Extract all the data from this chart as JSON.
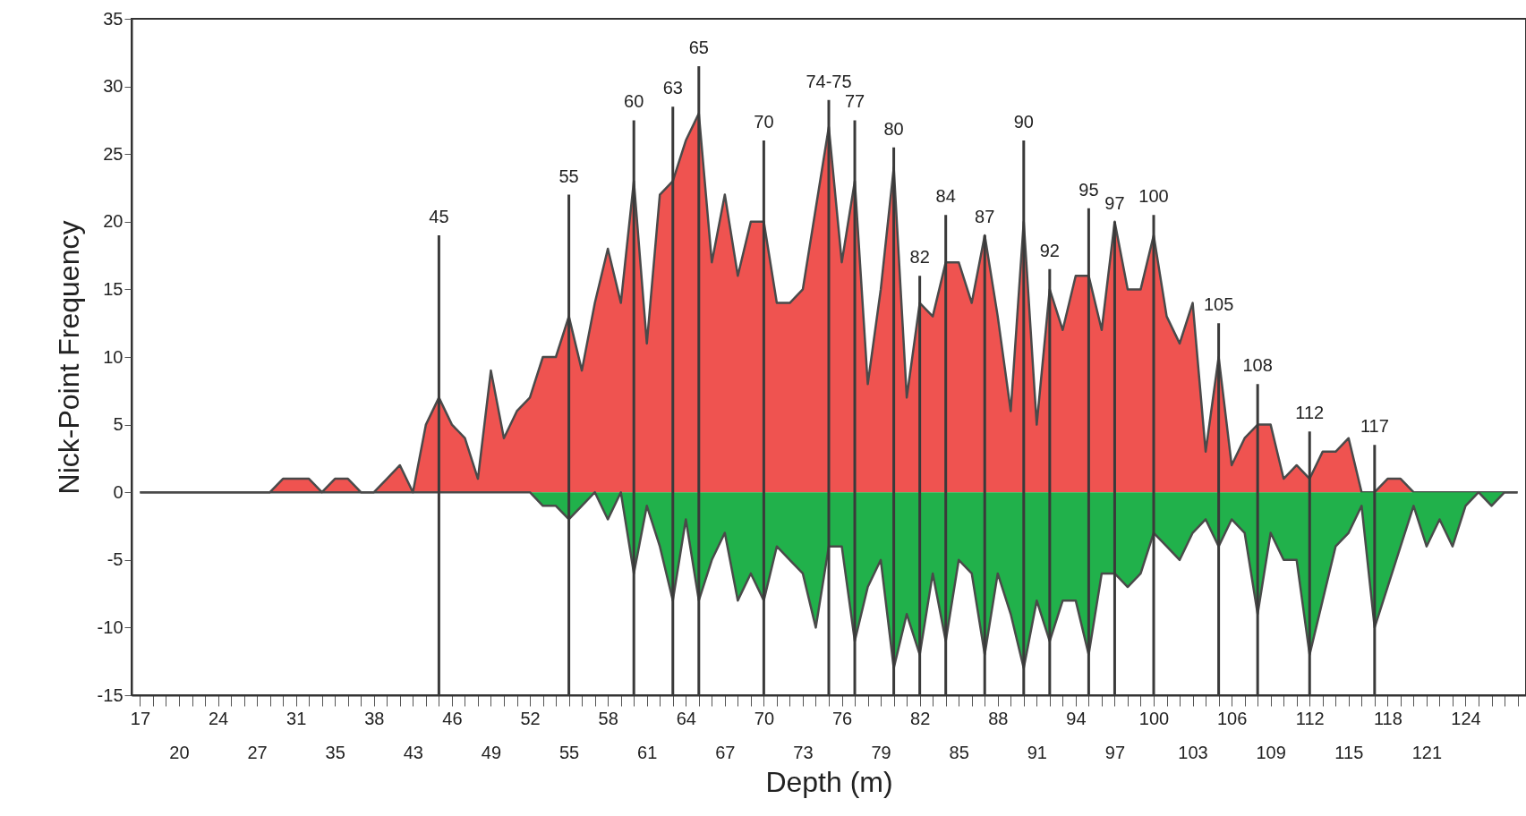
{
  "chart_data": {
    "type": "area",
    "xlabel": "Depth (m)",
    "ylabel": "Nick-Point Frequency",
    "ylim": [
      -15,
      35
    ],
    "yticks": [
      -15,
      -10,
      -5,
      0,
      5,
      10,
      15,
      20,
      25,
      30,
      35
    ],
    "annotations": [
      {
        "text": "45",
        "y": 19
      },
      {
        "text": "55",
        "y": 22
      },
      {
        "text": "60",
        "y": 27.5
      },
      {
        "text": "63",
        "y": 28.5
      },
      {
        "text": "65",
        "y": 31.5
      },
      {
        "text": "70",
        "y": 26
      },
      {
        "text": "74-75",
        "y": 29
      },
      {
        "text": "77",
        "y": 27.5
      },
      {
        "text": "80",
        "y": 25.5
      },
      {
        "text": "82",
        "y": 16
      },
      {
        "text": "84",
        "y": 20.5
      },
      {
        "text": "87",
        "y": 19
      },
      {
        "text": "90",
        "y": 26
      },
      {
        "text": "92",
        "y": 16.5
      },
      {
        "text": "95",
        "y": 21
      },
      {
        "text": "97",
        "y": 20
      },
      {
        "text": "100",
        "y": 20.5
      },
      {
        "text": "105",
        "y": 12.5
      },
      {
        "text": "108",
        "y": 8
      },
      {
        "text": "112",
        "y": 4.5
      },
      {
        "text": "117",
        "y": 3.5
      }
    ],
    "categories": [
      "17",
      null,
      null,
      "20",
      null,
      null,
      "24",
      null,
      null,
      "27",
      null,
      null,
      "31",
      null,
      null,
      "35",
      null,
      null,
      "38",
      null,
      null,
      "43",
      null,
      null,
      "46",
      null,
      null,
      "49",
      null,
      null,
      "52",
      null,
      null,
      "55",
      null,
      null,
      "58",
      null,
      null,
      "61",
      null,
      null,
      "64",
      null,
      null,
      "67",
      null,
      null,
      "70",
      null,
      null,
      "73",
      null,
      null,
      "76",
      null,
      null,
      "79",
      null,
      null,
      "82",
      null,
      null,
      "85",
      null,
      null,
      "88",
      null,
      null,
      "91",
      null,
      null,
      "94",
      null,
      null,
      "97",
      null,
      null,
      "100",
      null,
      null,
      "103",
      null,
      null,
      "106",
      null,
      null,
      "109",
      null,
      null,
      "112",
      null,
      null,
      "115",
      null,
      null,
      "118",
      null,
      null,
      "121",
      null,
      null,
      "124",
      null,
      null,
      null,
      null
    ],
    "series": [
      {
        "color": "#ef5350",
        "values": [
          0,
          0,
          0,
          0,
          0,
          0,
          0,
          0,
          0,
          0,
          0,
          1,
          1,
          1,
          0,
          1,
          1,
          0,
          0,
          1,
          2,
          0,
          5,
          7,
          5,
          4,
          1,
          9,
          4,
          6,
          7,
          10,
          10,
          13,
          9,
          14,
          18,
          14,
          23,
          11,
          22,
          23,
          26,
          28,
          17,
          22,
          16,
          20,
          20,
          14,
          14,
          15,
          21,
          27,
          17,
          23,
          8,
          15,
          24,
          7,
          14,
          13,
          17,
          17,
          14,
          19,
          13,
          6,
          20,
          5,
          15,
          12,
          16,
          16,
          12,
          20,
          15,
          15,
          19,
          13,
          11,
          14,
          3,
          10,
          2,
          4,
          5,
          5,
          1,
          2,
          1,
          3,
          3,
          4,
          0,
          0,
          1,
          1,
          0,
          0,
          0,
          0,
          0,
          0,
          0,
          0,
          0
        ]
      },
      {
        "color": "#21b14b",
        "values": [
          0,
          0,
          0,
          0,
          0,
          0,
          0,
          0,
          0,
          0,
          0,
          0,
          0,
          0,
          0,
          0,
          0,
          0,
          0,
          0,
          0,
          0,
          0,
          0,
          0,
          0,
          0,
          0,
          0,
          0,
          0,
          -1,
          -1,
          -2,
          -1,
          0,
          -2,
          0,
          -6,
          -1,
          -4,
          -8,
          -2,
          -8,
          -5,
          -3,
          -8,
          -6,
          -8,
          -4,
          -5,
          -6,
          -10,
          -4,
          -4,
          -11,
          -7,
          -5,
          -13,
          -9,
          -12,
          -6,
          -11,
          -5,
          -6,
          -12,
          -6,
          -9,
          -13,
          -8,
          -11,
          -8,
          -8,
          -12,
          -6,
          -6,
          -7,
          -6,
          -3,
          -4,
          -5,
          -3,
          -2,
          -4,
          -2,
          -3,
          -9,
          -3,
          -5,
          -5,
          -12,
          -8,
          -4,
          -3,
          -1,
          -10,
          -7,
          -4,
          -1,
          -4,
          -2,
          -4,
          -1,
          0,
          -1,
          0,
          0
        ]
      },
      {
        "type": "bar",
        "color": "#3a3a3a",
        "base": [
          null,
          null,
          null,
          null,
          null,
          null,
          null,
          null,
          null,
          null,
          null,
          null,
          null,
          null,
          null,
          null,
          null,
          null,
          null,
          null,
          null,
          null,
          null,
          -15,
          null,
          null,
          null,
          null,
          null,
          null,
          null,
          null,
          null,
          -15,
          null,
          null,
          null,
          null,
          -15,
          null,
          null,
          -15,
          null,
          -15,
          null,
          null,
          null,
          null,
          -15,
          null,
          null,
          null,
          null,
          -15,
          null,
          -15,
          null,
          null,
          -15,
          null,
          -15,
          null,
          -15,
          null,
          null,
          -15,
          null,
          null,
          -15,
          null,
          -15,
          null,
          null,
          -15,
          null,
          -15,
          null,
          null,
          -15,
          null,
          null,
          null,
          null,
          -15,
          null,
          null,
          -15,
          null,
          null,
          null,
          -15,
          null,
          null,
          null,
          null,
          -15,
          null,
          null,
          null,
          null,
          null,
          null,
          null,
          null,
          null,
          null,
          null
        ],
        "values": [
          null,
          null,
          null,
          null,
          null,
          null,
          null,
          null,
          null,
          null,
          null,
          null,
          null,
          null,
          null,
          null,
          null,
          null,
          null,
          null,
          null,
          null,
          null,
          34,
          null,
          null,
          null,
          null,
          null,
          null,
          null,
          null,
          null,
          37,
          null,
          null,
          null,
          null,
          42.5,
          null,
          null,
          43.5,
          null,
          46.5,
          null,
          null,
          null,
          null,
          41,
          null,
          null,
          null,
          null,
          44,
          null,
          42.5,
          null,
          null,
          40.5,
          null,
          31,
          null,
          35.5,
          null,
          null,
          34,
          null,
          null,
          41,
          null,
          31.5,
          null,
          null,
          36,
          null,
          35,
          null,
          null,
          35.5,
          null,
          null,
          null,
          null,
          27.5,
          null,
          null,
          23,
          null,
          null,
          null,
          19.5,
          null,
          null,
          null,
          null,
          18.5,
          null,
          null,
          null,
          null,
          null,
          null,
          null,
          null,
          null,
          null,
          null
        ]
      }
    ]
  }
}
